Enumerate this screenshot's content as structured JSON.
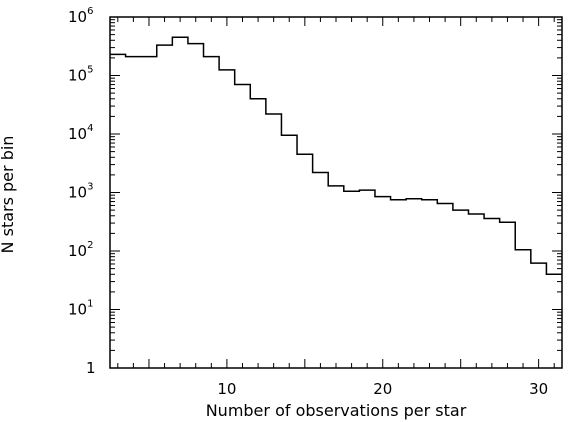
{
  "chart_data": {
    "type": "step",
    "title": "",
    "xlabel": "Number of observations per star",
    "ylabel": "N stars per bin",
    "xlim": [
      2.5,
      31.5
    ],
    "ylim": [
      1,
      1000000
    ],
    "yscale": "log",
    "grid": false,
    "legend": "none",
    "x_ticks": [
      10,
      20,
      30
    ],
    "x_tick_labels": [
      "10",
      "20",
      "30"
    ],
    "y_ticks": [
      {
        "value": 1,
        "base": "1",
        "exp": ""
      },
      {
        "value": 10,
        "base": "10",
        "exp": "1"
      },
      {
        "value": 100,
        "base": "10",
        "exp": "2"
      },
      {
        "value": 1000,
        "base": "10",
        "exp": "3"
      },
      {
        "value": 10000,
        "base": "10",
        "exp": "4"
      },
      {
        "value": 100000,
        "base": "10",
        "exp": "5"
      },
      {
        "value": 1000000,
        "base": "10",
        "exp": "6"
      }
    ],
    "bins": [
      {
        "x0": 2.5,
        "x1": 3.5,
        "y": 230000
      },
      {
        "x0": 3.5,
        "x1": 5.5,
        "y": 210000
      },
      {
        "x0": 5.5,
        "x1": 6.5,
        "y": 330000
      },
      {
        "x0": 6.5,
        "x1": 7.5,
        "y": 450000
      },
      {
        "x0": 7.5,
        "x1": 8.5,
        "y": 350000
      },
      {
        "x0": 8.5,
        "x1": 9.5,
        "y": 210000
      },
      {
        "x0": 9.5,
        "x1": 10.5,
        "y": 125000
      },
      {
        "x0": 10.5,
        "x1": 11.5,
        "y": 70000
      },
      {
        "x0": 11.5,
        "x1": 12.5,
        "y": 40000
      },
      {
        "x0": 12.5,
        "x1": 13.5,
        "y": 22000
      },
      {
        "x0": 13.5,
        "x1": 14.5,
        "y": 9500
      },
      {
        "x0": 14.5,
        "x1": 15.5,
        "y": 4500
      },
      {
        "x0": 15.5,
        "x1": 16.5,
        "y": 2200
      },
      {
        "x0": 16.5,
        "x1": 17.5,
        "y": 1300
      },
      {
        "x0": 17.5,
        "x1": 18.5,
        "y": 1050
      },
      {
        "x0": 18.5,
        "x1": 19.5,
        "y": 1100
      },
      {
        "x0": 19.5,
        "x1": 20.5,
        "y": 850
      },
      {
        "x0": 20.5,
        "x1": 21.5,
        "y": 750
      },
      {
        "x0": 21.5,
        "x1": 22.5,
        "y": 780
      },
      {
        "x0": 22.5,
        "x1": 23.5,
        "y": 750
      },
      {
        "x0": 23.5,
        "x1": 24.5,
        "y": 650
      },
      {
        "x0": 24.5,
        "x1": 25.5,
        "y": 500
      },
      {
        "x0": 25.5,
        "x1": 26.5,
        "y": 430
      },
      {
        "x0": 26.5,
        "x1": 27.5,
        "y": 360
      },
      {
        "x0": 27.5,
        "x1": 28.5,
        "y": 310
      },
      {
        "x0": 28.5,
        "x1": 29.5,
        "y": 105
      },
      {
        "x0": 29.5,
        "x1": 30.5,
        "y": 62
      },
      {
        "x0": 30.5,
        "x1": 31.5,
        "y": 40
      }
    ]
  }
}
